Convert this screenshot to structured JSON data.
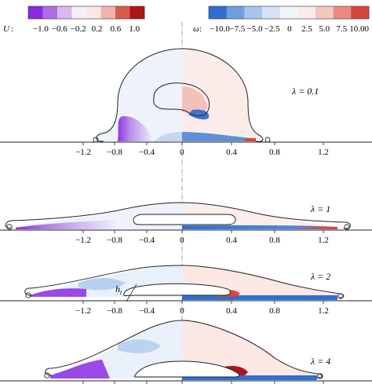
{
  "colorbars": {
    "u": {
      "symbol": "U",
      "ticks": [
        "−1.0",
        "−0.6",
        "−0.2",
        "0.2",
        "0.6",
        "1.0"
      ],
      "colors": [
        "#8a2be2",
        "#b06ee6",
        "#d8b8f2",
        "#f6eef9",
        "#fbe7e6",
        "#f0b3ad",
        "#d75a4f",
        "#b01515"
      ]
    },
    "omega": {
      "symbol": "ω",
      "ticks": [
        "−10.0",
        "−7.5",
        "−5.0",
        "−2.5",
        "0",
        "2.5",
        "5.0",
        "7.5",
        "10.00"
      ],
      "colors": [
        "#2f6fd1",
        "#6f9ee0",
        "#a9c5ec",
        "#d5e3f5",
        "#f0f5fb",
        "#fbecea",
        "#f4c6c0",
        "#e98b82",
        "#d6463c"
      ]
    }
  },
  "panels": [
    {
      "lambda_label": "λ = 0.1",
      "x_ticks": [
        "−1.2",
        "−0.8",
        "−0.4",
        "0",
        "0.4",
        "0.8",
        "1.2"
      ]
    },
    {
      "lambda_label": "λ = 1",
      "x_ticks": [
        "−1.2",
        "−0.8",
        "−0.4",
        "0",
        "0.4",
        "0.8",
        "1.2"
      ]
    },
    {
      "lambda_label": "λ = 2",
      "x_ticks": [
        "−1.2",
        "−0.8",
        "−0.4",
        "0",
        "0.4",
        "0.8",
        "1.2"
      ],
      "annotation": "h",
      "annotation_sub": "t"
    },
    {
      "lambda_label": "λ = 4",
      "x_ticks": []
    }
  ]
}
